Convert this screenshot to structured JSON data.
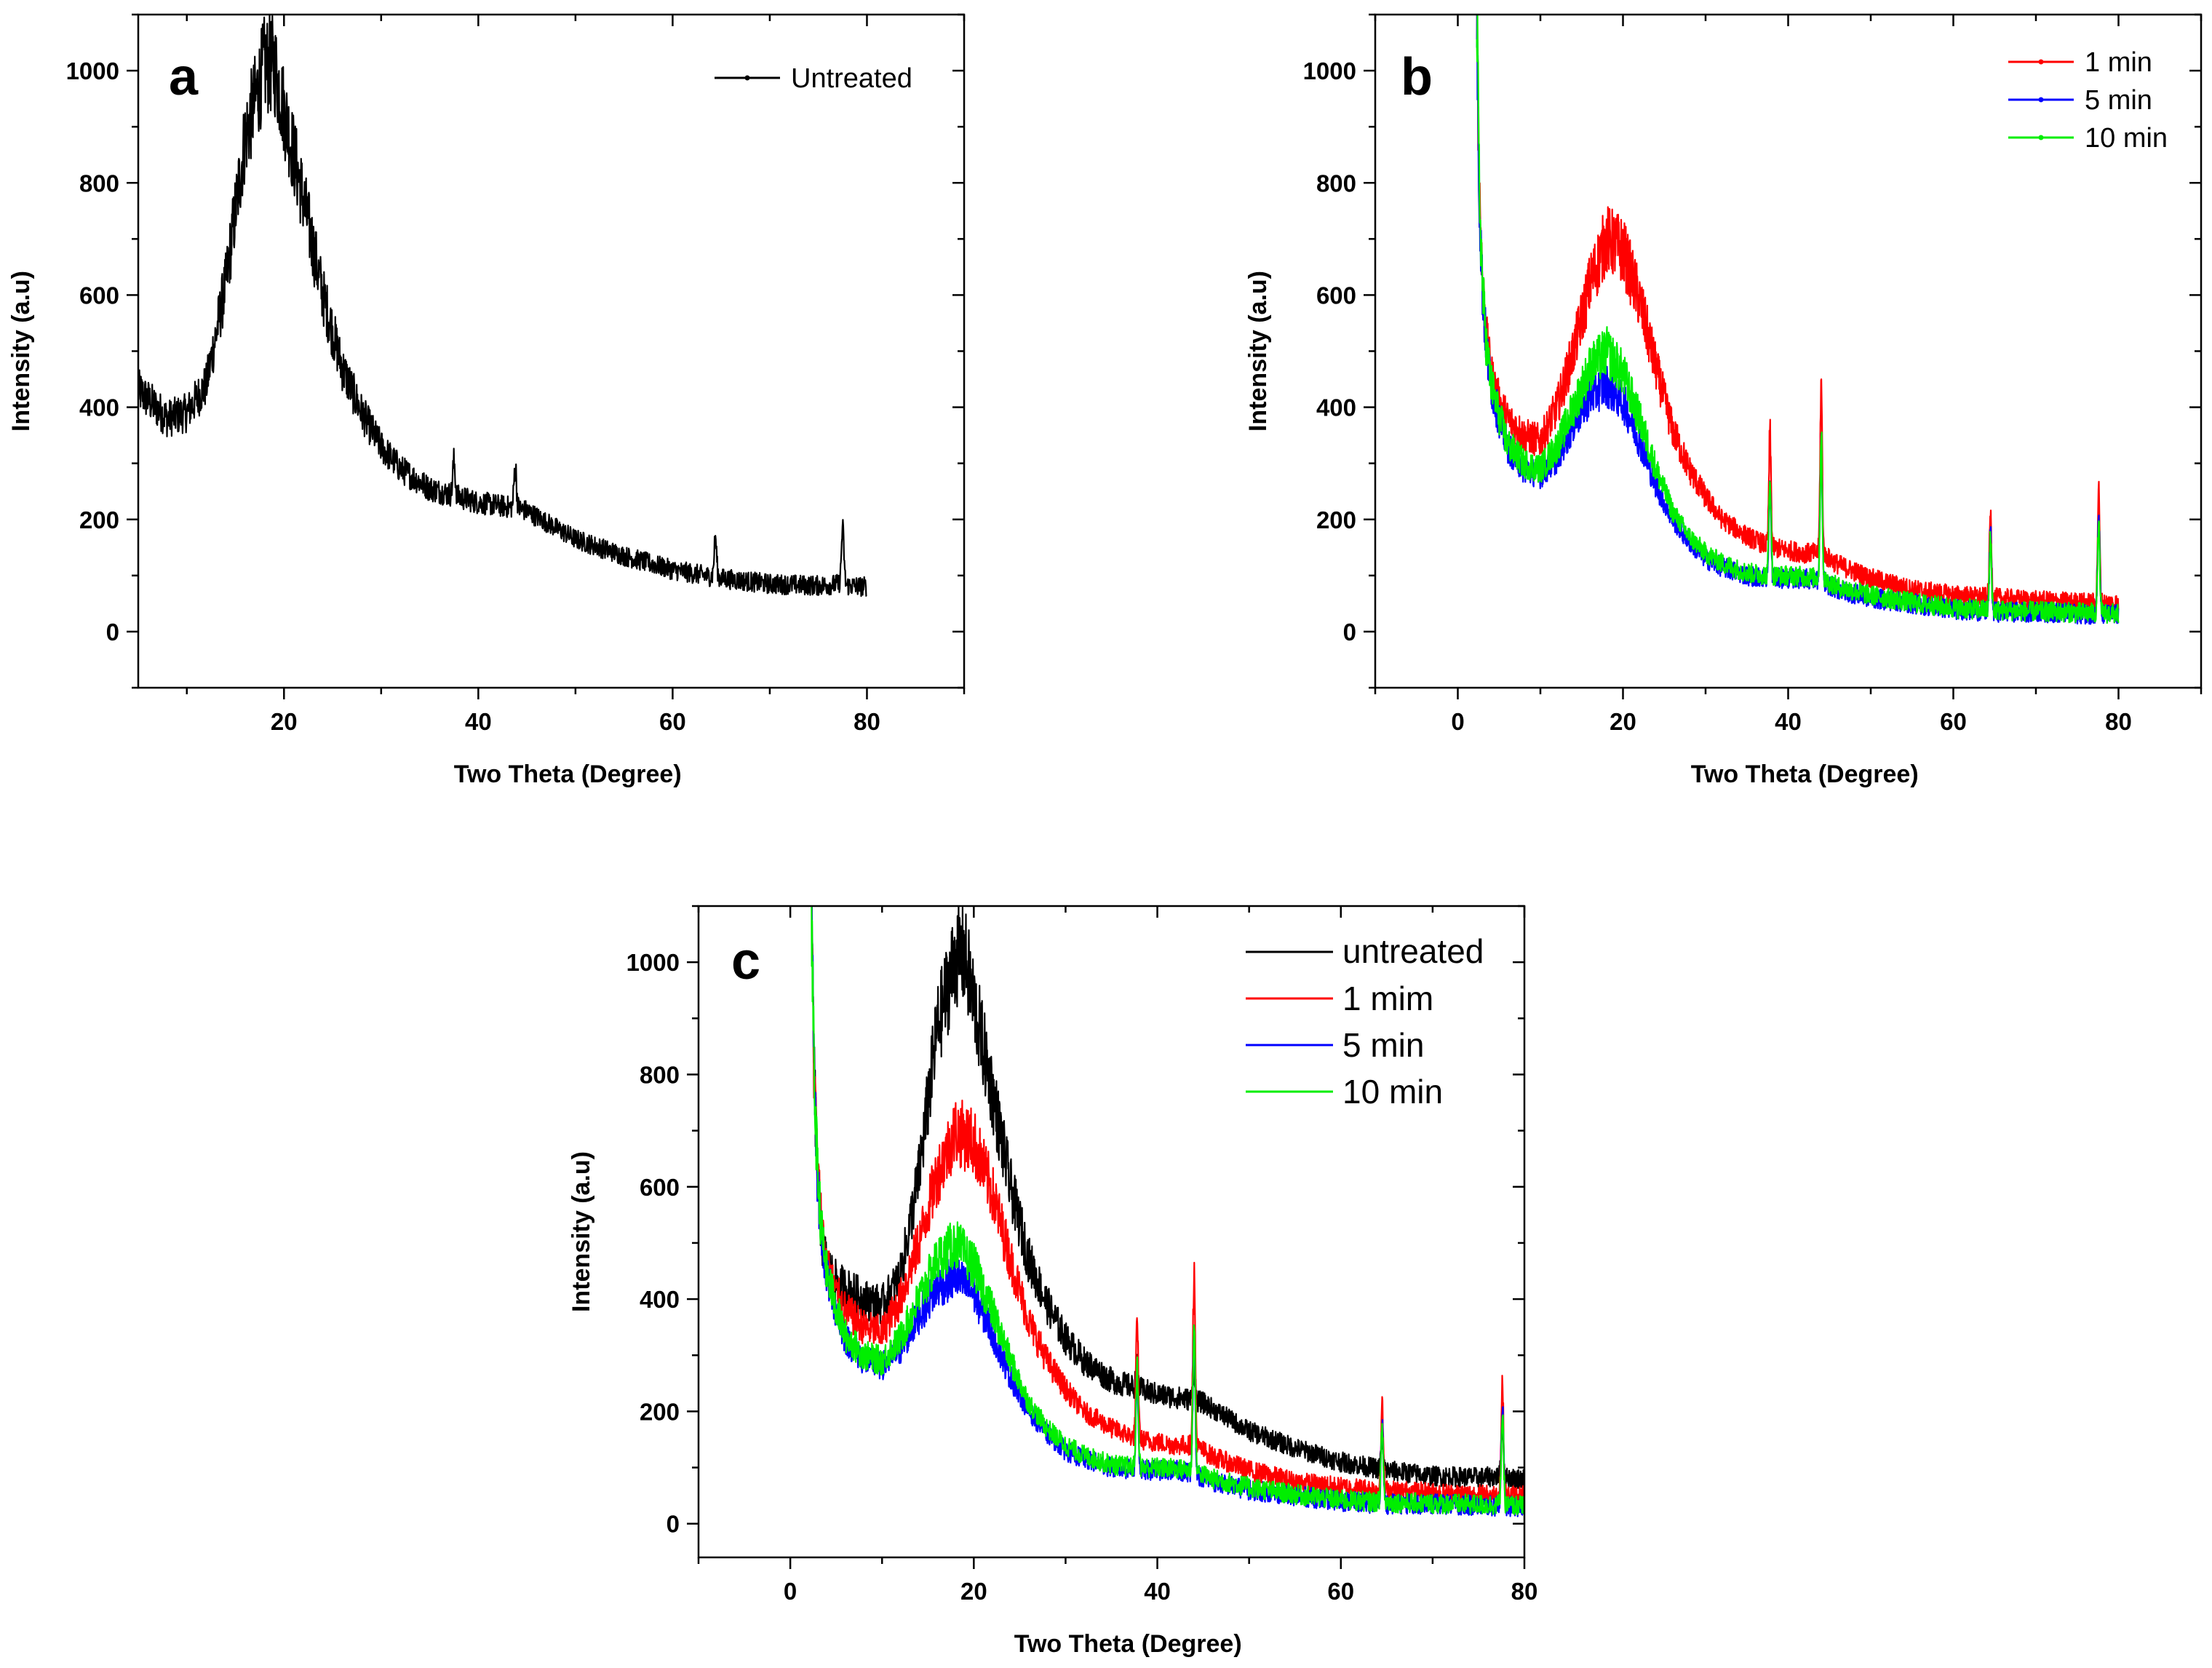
{
  "chart_data": [
    {
      "panel": "a",
      "type": "line",
      "xlabel": "Two Theta (Degree)",
      "ylabel": "Intensity (a.u)",
      "xlim": [
        5,
        90
      ],
      "ylim": [
        -100,
        1100
      ],
      "xticks": [
        20,
        40,
        60,
        80
      ],
      "yticks": [
        0,
        200,
        400,
        600,
        800,
        1000
      ],
      "legend_position": "top-right",
      "series": [
        {
          "name": "Untreated",
          "color": "#000000",
          "x": [
            5,
            8,
            10,
            12,
            14,
            16,
            18,
            19,
            20,
            22,
            24,
            26,
            28,
            30,
            32,
            35,
            38,
            40,
            42,
            44,
            45,
            48,
            50,
            55,
            60,
            64,
            65,
            70,
            75,
            77.5,
            78,
            80
          ],
          "y": [
            430,
            380,
            390,
            440,
            620,
            880,
            1010,
            1010,
            930,
            770,
            600,
            470,
            390,
            330,
            290,
            255,
            240,
            230,
            225,
            220,
            215,
            185,
            165,
            135,
            110,
            98,
            95,
            85,
            82,
            85,
            82,
            80
          ]
        }
      ],
      "peaks": [
        {
          "x": 37.5,
          "height": 60
        },
        {
          "x": 43.8,
          "height": 75
        },
        {
          "x": 64.4,
          "height": 70
        },
        {
          "x": 77.5,
          "height": 100
        }
      ]
    },
    {
      "panel": "b",
      "type": "line",
      "xlabel": "Two Theta (Degree)",
      "ylabel": "Intensity (a.u)",
      "xlim": [
        -10,
        90
      ],
      "ylim": [
        -100,
        1100
      ],
      "xticks": [
        0,
        20,
        40,
        60,
        80
      ],
      "yticks": [
        0,
        200,
        400,
        600,
        800,
        1000
      ],
      "legend_position": "top-right",
      "series": [
        {
          "name": "1 min",
          "color": "#ff0000",
          "x": [
            2.3,
            2.6,
            3,
            3.5,
            4,
            5,
            6,
            8,
            10,
            12,
            14,
            16,
            18,
            20,
            22,
            24,
            26,
            28,
            30,
            32,
            35,
            38,
            40,
            42,
            44,
            46,
            50,
            55,
            60,
            65,
            70,
            75,
            80
          ],
          "y": [
            1100,
            800,
            620,
            520,
            460,
            410,
            380,
            350,
            340,
            400,
            500,
            620,
            700,
            680,
            590,
            470,
            360,
            290,
            240,
            200,
            170,
            150,
            145,
            140,
            140,
            120,
            95,
            75,
            65,
            60,
            55,
            52,
            50
          ]
        },
        {
          "name": "5 min",
          "color": "#0000ff",
          "x": [
            2.3,
            2.6,
            3,
            3.5,
            4,
            5,
            6,
            8,
            10,
            12,
            14,
            16,
            18,
            20,
            22,
            24,
            26,
            28,
            30,
            32,
            35,
            38,
            40,
            42,
            44,
            46,
            50,
            55,
            60,
            65,
            70,
            75,
            80
          ],
          "y": [
            1100,
            780,
            600,
            500,
            440,
            380,
            330,
            290,
            280,
            310,
            370,
            420,
            440,
            410,
            340,
            260,
            200,
            160,
            130,
            115,
            100,
            95,
            95,
            95,
            90,
            75,
            60,
            50,
            40,
            35,
            35,
            32,
            30
          ]
        },
        {
          "name": "10 min",
          "color": "#00ee00",
          "x": [
            2.3,
            2.6,
            3,
            3.5,
            4,
            5,
            6,
            8,
            10,
            12,
            14,
            16,
            18,
            20,
            22,
            24,
            26,
            28,
            30,
            32,
            35,
            38,
            40,
            42,
            44,
            46,
            50,
            55,
            60,
            65,
            70,
            75,
            80
          ],
          "y": [
            1100,
            790,
            610,
            505,
            445,
            385,
            335,
            300,
            290,
            330,
            400,
            470,
            500,
            460,
            380,
            290,
            215,
            170,
            140,
            122,
            105,
            100,
            100,
            98,
            95,
            80,
            65,
            52,
            42,
            38,
            36,
            34,
            32
          ]
        }
      ],
      "peaks": [
        {
          "x": 37.8,
          "heights": [
            200,
            160,
            180
          ]
        },
        {
          "x": 44.0,
          "heights": [
            300,
            240,
            260
          ]
        },
        {
          "x": 64.5,
          "heights": [
            150,
            140,
            130
          ]
        },
        {
          "x": 77.6,
          "heights": [
            200,
            180,
            160
          ]
        }
      ]
    },
    {
      "panel": "c",
      "type": "line",
      "xlabel": "Two Theta (Degree)",
      "ylabel": "Intensity (a.u)",
      "xlim": [
        -10,
        80
      ],
      "ylim": [
        -60,
        1100
      ],
      "xticks": [
        0,
        20,
        40,
        60,
        80
      ],
      "yticks": [
        0,
        200,
        400,
        600,
        800,
        1000
      ],
      "legend_position": "top-right",
      "series": [
        {
          "name": "untreated",
          "color": "#000000",
          "x": [
            2.3,
            2.6,
            3,
            3.5,
            4,
            5,
            6,
            8,
            10,
            12,
            14,
            16,
            18,
            19,
            20,
            22,
            24,
            26,
            28,
            30,
            32,
            35,
            38,
            40,
            42,
            44,
            45,
            48,
            50,
            55,
            60,
            64,
            65,
            70,
            75,
            77.5,
            78,
            80
          ],
          "y": [
            1100,
            800,
            600,
            500,
            460,
            430,
            420,
            400,
            390,
            440,
            620,
            880,
            1010,
            1010,
            930,
            770,
            600,
            470,
            390,
            330,
            290,
            255,
            240,
            230,
            225,
            220,
            215,
            185,
            165,
            135,
            110,
            98,
            95,
            85,
            82,
            85,
            82,
            80
          ]
        },
        {
          "name": "1 mim",
          "color": "#ff0000",
          "x": [
            2.3,
            2.6,
            3,
            3.5,
            4,
            5,
            6,
            8,
            10,
            12,
            14,
            16,
            18,
            20,
            22,
            24,
            26,
            28,
            30,
            32,
            35,
            38,
            40,
            42,
            44,
            46,
            50,
            55,
            60,
            65,
            70,
            75,
            80
          ],
          "y": [
            1100,
            800,
            620,
            520,
            460,
            410,
            380,
            350,
            340,
            400,
            500,
            620,
            700,
            680,
            590,
            470,
            360,
            290,
            240,
            200,
            170,
            150,
            145,
            140,
            140,
            120,
            95,
            75,
            65,
            60,
            55,
            52,
            50
          ]
        },
        {
          "name": "5 min",
          "color": "#0000ff",
          "x": [
            2.3,
            2.6,
            3,
            3.5,
            4,
            5,
            6,
            8,
            10,
            12,
            14,
            16,
            18,
            20,
            22,
            24,
            26,
            28,
            30,
            32,
            35,
            38,
            40,
            42,
            44,
            46,
            50,
            55,
            60,
            65,
            70,
            75,
            80
          ],
          "y": [
            1100,
            780,
            600,
            500,
            440,
            380,
            330,
            290,
            280,
            310,
            370,
            420,
            440,
            410,
            340,
            260,
            200,
            160,
            130,
            115,
            100,
            95,
            95,
            95,
            90,
            75,
            60,
            50,
            40,
            35,
            35,
            32,
            30
          ]
        },
        {
          "name": "10 min",
          "color": "#00ee00",
          "x": [
            2.3,
            2.6,
            3,
            3.5,
            4,
            5,
            6,
            8,
            10,
            12,
            14,
            16,
            18,
            20,
            22,
            24,
            26,
            28,
            30,
            32,
            35,
            38,
            40,
            42,
            44,
            46,
            50,
            55,
            60,
            65,
            70,
            75,
            80
          ],
          "y": [
            1100,
            790,
            610,
            505,
            445,
            385,
            335,
            300,
            290,
            330,
            400,
            470,
            500,
            460,
            380,
            290,
            215,
            170,
            140,
            122,
            105,
            100,
            100,
            98,
            95,
            80,
            65,
            52,
            42,
            38,
            36,
            34,
            32
          ]
        }
      ],
      "peaks": [
        {
          "x": 37.8,
          "heights": [
            40,
            200,
            160,
            180
          ]
        },
        {
          "x": 44.0,
          "heights": [
            60,
            300,
            240,
            260
          ]
        },
        {
          "x": 64.5,
          "heights": [
            50,
            150,
            140,
            130
          ]
        },
        {
          "x": 77.6,
          "heights": [
            80,
            200,
            180,
            160
          ]
        }
      ]
    }
  ]
}
